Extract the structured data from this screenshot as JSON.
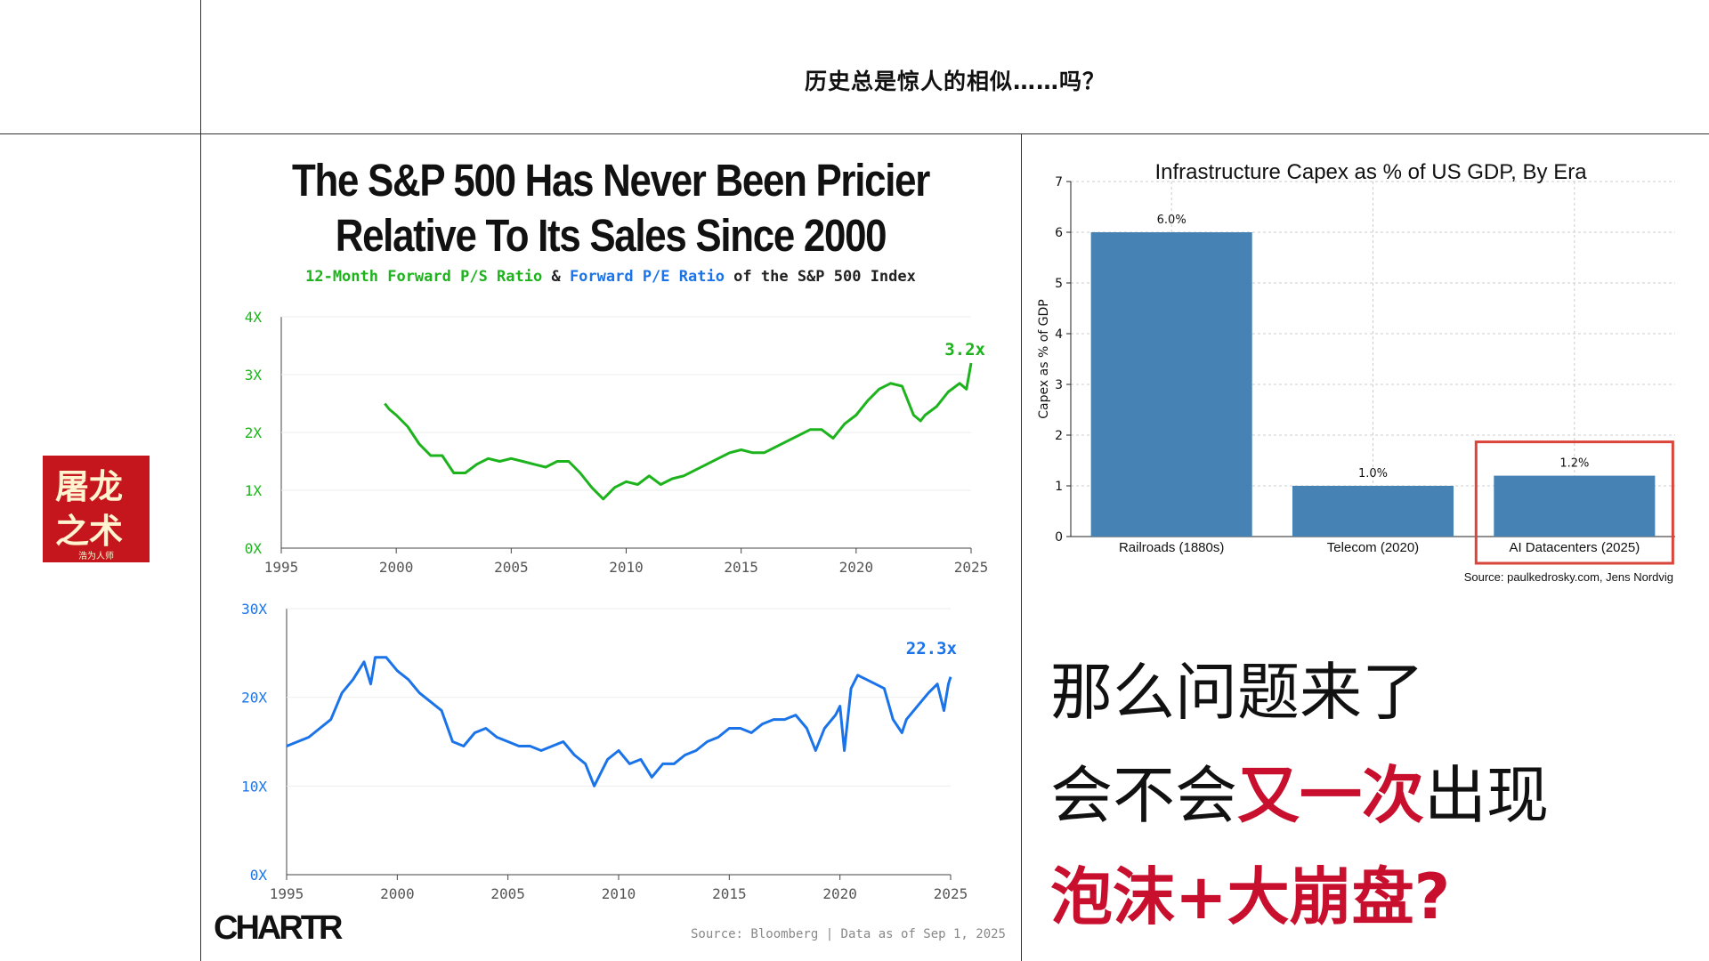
{
  "header": {
    "title": "历史总是惊人的相似……吗？"
  },
  "logo": {
    "line1": "屠龙",
    "line2": "之术",
    "caption": "浩为人师"
  },
  "left_panel": {
    "title_line1": "The S&P 500 Has Never Been Pricier",
    "title_line2": "Relative To Its Sales Since 2000",
    "subtitle_ps": "12-Month Forward P/S Ratio",
    "subtitle_amp": " & ",
    "subtitle_pe": "Forward P/E Ratio",
    "subtitle_rest": " of the S&P 500 Index",
    "brand": "CHARTR",
    "source": "Source: Bloomberg | Data as of Sep 1, 2025"
  },
  "question": {
    "line1": "那么问题来了",
    "line2_a": "会不会",
    "line2_red": "又一次",
    "line2_b": "出现",
    "line3": "泡沫+大崩盘?"
  },
  "chart_data": [
    {
      "type": "line",
      "name": "12-Month Forward P/S Ratio",
      "color": "#1db31d",
      "xlim": [
        1995,
        2025
      ],
      "ylim": [
        0,
        4
      ],
      "xticks": [
        "1995",
        "2000",
        "2005",
        "2010",
        "2015",
        "2020",
        "2025"
      ],
      "yticks": [
        "0X",
        "1X",
        "2X",
        "3X",
        "4X"
      ],
      "end_label": "3.2x",
      "points": [
        [
          1999.5,
          2.5
        ],
        [
          1999.7,
          2.4
        ],
        [
          2000.0,
          2.3
        ],
        [
          2000.5,
          2.1
        ],
        [
          2001.0,
          1.8
        ],
        [
          2001.5,
          1.6
        ],
        [
          2002.0,
          1.6
        ],
        [
          2002.5,
          1.3
        ],
        [
          2003.0,
          1.3
        ],
        [
          2003.5,
          1.45
        ],
        [
          2004.0,
          1.55
        ],
        [
          2004.5,
          1.5
        ],
        [
          2005.0,
          1.55
        ],
        [
          2005.5,
          1.5
        ],
        [
          2006.0,
          1.45
        ],
        [
          2006.5,
          1.4
        ],
        [
          2007.0,
          1.5
        ],
        [
          2007.5,
          1.5
        ],
        [
          2008.0,
          1.3
        ],
        [
          2008.5,
          1.05
        ],
        [
          2009.0,
          0.85
        ],
        [
          2009.5,
          1.05
        ],
        [
          2010.0,
          1.15
        ],
        [
          2010.5,
          1.1
        ],
        [
          2011.0,
          1.25
        ],
        [
          2011.5,
          1.1
        ],
        [
          2012.0,
          1.2
        ],
        [
          2012.5,
          1.25
        ],
        [
          2013.0,
          1.35
        ],
        [
          2013.5,
          1.45
        ],
        [
          2014.0,
          1.55
        ],
        [
          2014.5,
          1.65
        ],
        [
          2015.0,
          1.7
        ],
        [
          2015.5,
          1.65
        ],
        [
          2016.0,
          1.65
        ],
        [
          2016.5,
          1.75
        ],
        [
          2017.0,
          1.85
        ],
        [
          2017.5,
          1.95
        ],
        [
          2018.0,
          2.05
        ],
        [
          2018.5,
          2.05
        ],
        [
          2019.0,
          1.9
        ],
        [
          2019.5,
          2.15
        ],
        [
          2020.0,
          2.3
        ],
        [
          2020.5,
          2.55
        ],
        [
          2021.0,
          2.75
        ],
        [
          2021.5,
          2.85
        ],
        [
          2022.0,
          2.8
        ],
        [
          2022.5,
          2.3
        ],
        [
          2022.8,
          2.2
        ],
        [
          2023.0,
          2.3
        ],
        [
          2023.5,
          2.45
        ],
        [
          2024.0,
          2.7
        ],
        [
          2024.5,
          2.85
        ],
        [
          2024.8,
          2.75
        ],
        [
          2025.0,
          3.2
        ]
      ]
    },
    {
      "type": "line",
      "name": "Forward P/E Ratio",
      "color": "#1a73e8",
      "xlim": [
        1995,
        2025
      ],
      "ylim": [
        0,
        30
      ],
      "xticks": [
        "1995",
        "2000",
        "2005",
        "2010",
        "2015",
        "2020",
        "2025"
      ],
      "yticks": [
        "0X",
        "10X",
        "20X",
        "30X"
      ],
      "end_label": "22.3x",
      "points": [
        [
          1995.0,
          14.5
        ],
        [
          1995.5,
          15.0
        ],
        [
          1996.0,
          15.5
        ],
        [
          1996.5,
          16.5
        ],
        [
          1997.0,
          17.5
        ],
        [
          1997.5,
          20.5
        ],
        [
          1998.0,
          22.0
        ],
        [
          1998.5,
          24.0
        ],
        [
          1998.8,
          21.5
        ],
        [
          1999.0,
          24.5
        ],
        [
          1999.5,
          24.5
        ],
        [
          2000.0,
          23.0
        ],
        [
          2000.5,
          22.0
        ],
        [
          2001.0,
          20.5
        ],
        [
          2001.5,
          19.5
        ],
        [
          2002.0,
          18.5
        ],
        [
          2002.5,
          15.0
        ],
        [
          2003.0,
          14.5
        ],
        [
          2003.5,
          16.0
        ],
        [
          2004.0,
          16.5
        ],
        [
          2004.5,
          15.5
        ],
        [
          2005.0,
          15.0
        ],
        [
          2005.5,
          14.5
        ],
        [
          2006.0,
          14.5
        ],
        [
          2006.5,
          14.0
        ],
        [
          2007.0,
          14.5
        ],
        [
          2007.5,
          15.0
        ],
        [
          2008.0,
          13.5
        ],
        [
          2008.5,
          12.5
        ],
        [
          2008.9,
          10.0
        ],
        [
          2009.5,
          13.0
        ],
        [
          2010.0,
          14.0
        ],
        [
          2010.5,
          12.5
        ],
        [
          2011.0,
          13.0
        ],
        [
          2011.5,
          11.0
        ],
        [
          2012.0,
          12.5
        ],
        [
          2012.5,
          12.5
        ],
        [
          2013.0,
          13.5
        ],
        [
          2013.5,
          14.0
        ],
        [
          2014.0,
          15.0
        ],
        [
          2014.5,
          15.5
        ],
        [
          2015.0,
          16.5
        ],
        [
          2015.5,
          16.5
        ],
        [
          2016.0,
          16.0
        ],
        [
          2016.5,
          17.0
        ],
        [
          2017.0,
          17.5
        ],
        [
          2017.5,
          17.5
        ],
        [
          2018.0,
          18.0
        ],
        [
          2018.5,
          16.5
        ],
        [
          2018.9,
          14.0
        ],
        [
          2019.3,
          16.5
        ],
        [
          2019.8,
          18.0
        ],
        [
          2020.0,
          19.0
        ],
        [
          2020.2,
          14.0
        ],
        [
          2020.5,
          21.0
        ],
        [
          2020.8,
          22.5
        ],
        [
          2021.2,
          22.0
        ],
        [
          2021.6,
          21.5
        ],
        [
          2022.0,
          21.0
        ],
        [
          2022.4,
          17.5
        ],
        [
          2022.8,
          16.0
        ],
        [
          2023.0,
          17.5
        ],
        [
          2023.5,
          19.0
        ],
        [
          2024.0,
          20.5
        ],
        [
          2024.4,
          21.5
        ],
        [
          2024.7,
          18.5
        ],
        [
          2024.9,
          21.5
        ],
        [
          2025.0,
          22.3
        ]
      ]
    },
    {
      "type": "bar",
      "title": "Infrastructure Capex as % of US GDP, By Era",
      "ylabel": "Capex as % of GDP",
      "ylim": [
        0,
        7
      ],
      "yticks": [
        "0",
        "1",
        "2",
        "3",
        "4",
        "5",
        "6",
        "7"
      ],
      "categories": [
        "Railroads (1880s)",
        "Telecom (2020)",
        "AI Datacenters (2025)"
      ],
      "values": [
        6.0,
        1.0,
        1.2
      ],
      "data_labels": [
        "6.0%",
        "1.0%",
        "1.2%"
      ],
      "bar_color": "#4682b4",
      "highlight_category": "AI Datacenters (2025)",
      "highlight_color": "#d9453a",
      "grid": true,
      "source": "Source: paulkedrosky.com, Jens Nordvig"
    }
  ]
}
